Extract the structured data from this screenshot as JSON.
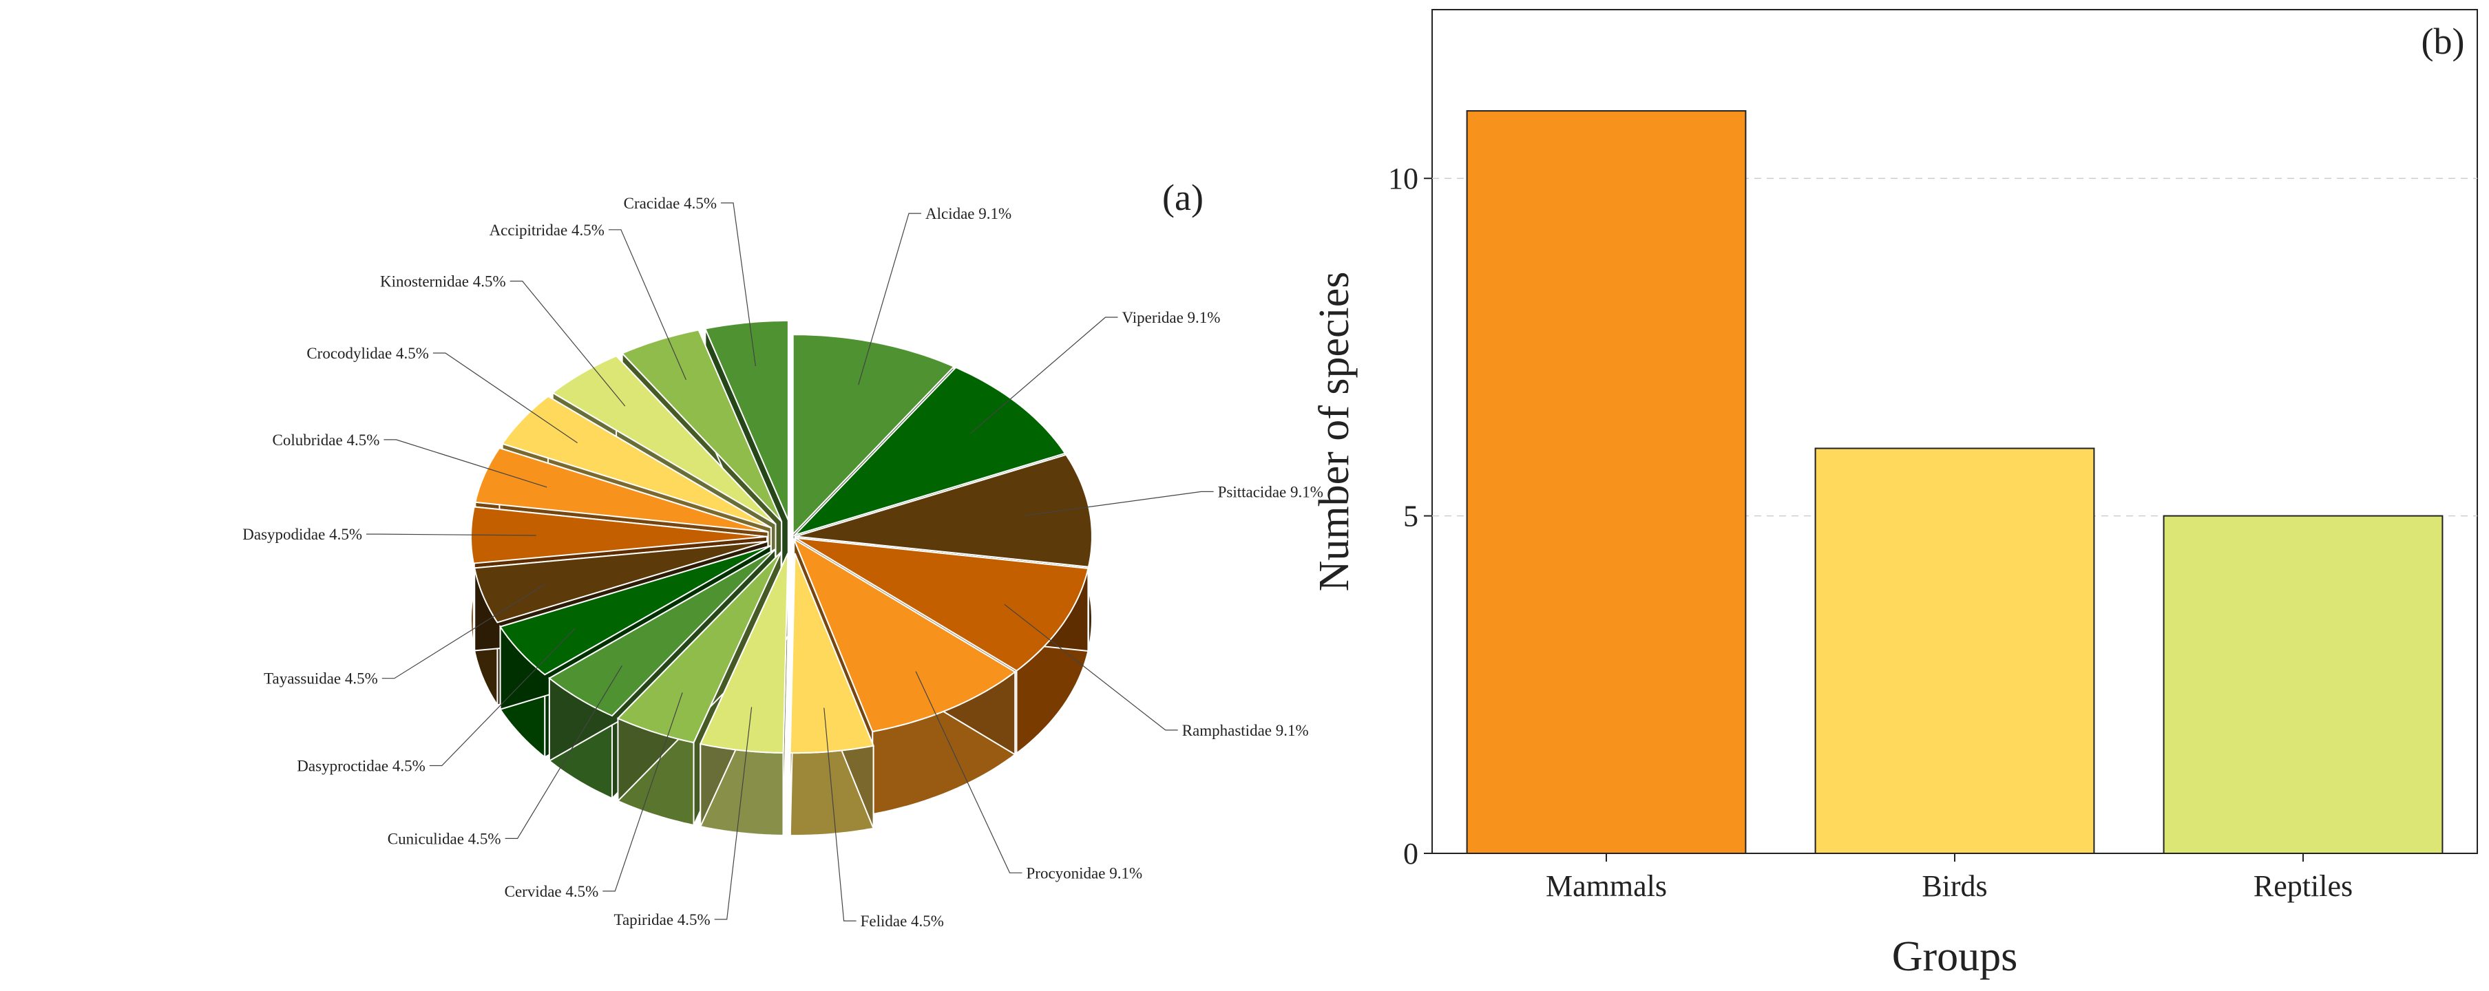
{
  "chart_data": [
    {
      "type": "pie",
      "panel_label": "(a)",
      "title": "",
      "slices": [
        {
          "label": "Alcidae",
          "display": "Alcidae 9.1%",
          "value": 9.1,
          "color": "#4e9232"
        },
        {
          "label": "Viperidae",
          "display": "Viperidae 9.1%",
          "value": 9.1,
          "color": "#006400"
        },
        {
          "label": "Psittacidae",
          "display": "Psittacidae 9.1%",
          "value": 9.1,
          "color": "#5c3a0a"
        },
        {
          "label": "Ramphastidae",
          "display": "Ramphastidae 9.1%",
          "value": 9.1,
          "color": "#c45f00"
        },
        {
          "label": "Procyonidae",
          "display": "Procyonidae 9.1%",
          "value": 9.1,
          "color": "#f7921d"
        },
        {
          "label": "Felidae",
          "display": "Felidae 4.5%",
          "value": 4.5,
          "color": "#fed95c"
        },
        {
          "label": "Tapiridae",
          "display": "Tapiridae 4.5%",
          "value": 4.5,
          "color": "#dbe675"
        },
        {
          "label": "Cervidae",
          "display": "Cervidae 4.5%",
          "value": 4.5,
          "color": "#8fbc4a"
        },
        {
          "label": "Cuniculidae",
          "display": "Cuniculidae 4.5%",
          "value": 4.5,
          "color": "#4e9232"
        },
        {
          "label": "Dasyproctidae",
          "display": "Dasyproctidae 4.5%",
          "value": 4.5,
          "color": "#006400"
        },
        {
          "label": "Tayassuidae",
          "display": "Tayassuidae 4.5%",
          "value": 4.5,
          "color": "#5c3a0a"
        },
        {
          "label": "Dasypodidae",
          "display": "Dasypodidae 4.5%",
          "value": 4.5,
          "color": "#c45f00"
        },
        {
          "label": "Colubridae",
          "display": "Colubridae 4.5%",
          "value": 4.5,
          "color": "#f7921d"
        },
        {
          "label": "Crocodylidae",
          "display": "Crocodylidae 4.5%",
          "value": 4.5,
          "color": "#fed95c"
        },
        {
          "label": "Kinosternidae",
          "display": "Kinosternidae 4.5%",
          "value": 4.5,
          "color": "#dbe675"
        },
        {
          "label": "Accipitridae",
          "display": "Accipitridae 4.5%",
          "value": 4.5,
          "color": "#8fbc4a"
        },
        {
          "label": "Cracidae",
          "display": "Cracidae 4.5%",
          "value": 4.5,
          "color": "#4e9232"
        }
      ]
    },
    {
      "type": "bar",
      "panel_label": "(b)",
      "title": "",
      "categories": [
        "Mammals",
        "Birds",
        "Reptiles"
      ],
      "values": [
        11,
        6,
        5
      ],
      "colors": [
        "#f7921d",
        "#fed95c",
        "#dbe675"
      ],
      "xlabel": "Groups",
      "ylabel": "Number of species",
      "ylim": [
        0,
        12.5
      ],
      "yticks": [
        0,
        5,
        10
      ],
      "grid": true
    }
  ]
}
